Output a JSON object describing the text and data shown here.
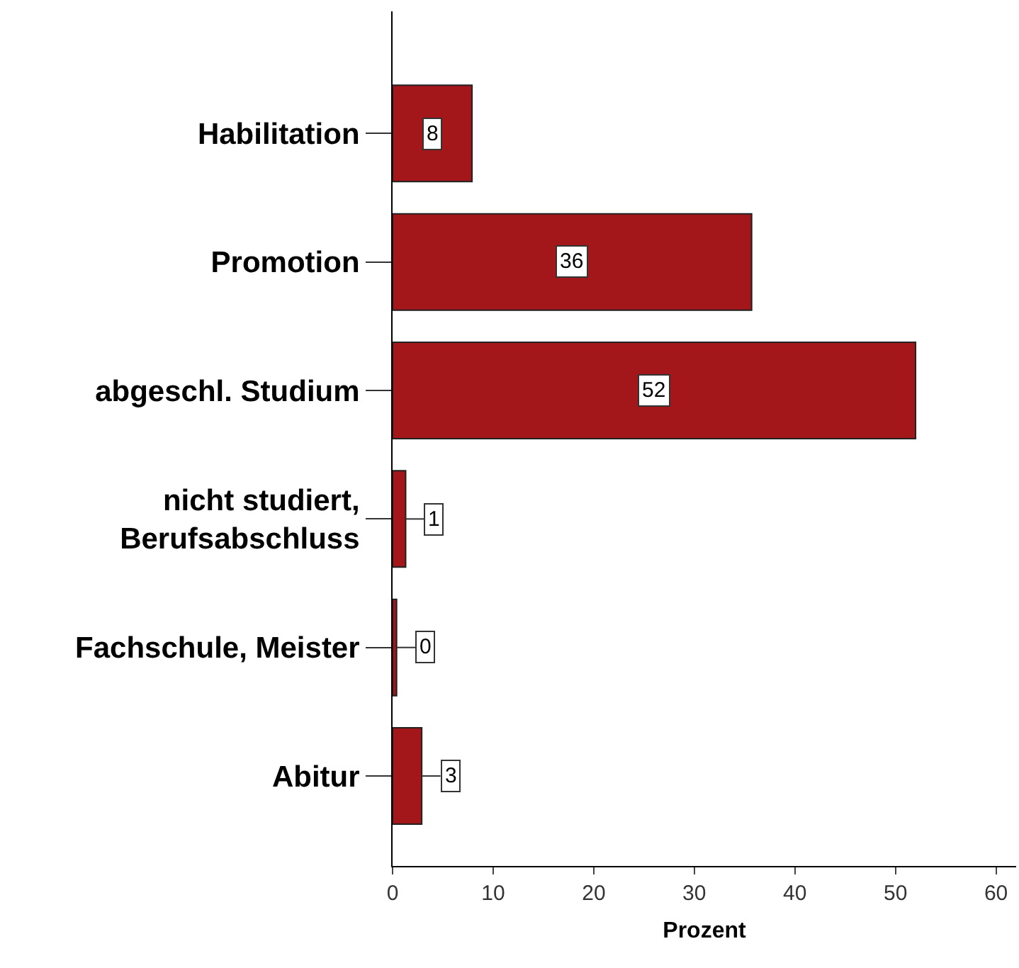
{
  "chart_data": {
    "type": "bar",
    "orientation": "horizontal",
    "xlabel": "Prozent",
    "categories": [
      "Habilitation",
      "Promotion",
      "abgeschl. Studium",
      "nicht studiert,\nBerufsabschluss",
      "Fachschule, Meister",
      "Abitur"
    ],
    "values": [
      7.9,
      35.7,
      52,
      1.3,
      0.4,
      2.9
    ],
    "value_labels": [
      "8",
      "36",
      "52",
      "1",
      "0",
      "3"
    ],
    "color": "#a3161a",
    "xlim": [
      0,
      62
    ],
    "xticks": [
      0,
      10,
      20,
      30,
      40,
      50,
      60
    ],
    "grid": false,
    "legend": false
  }
}
